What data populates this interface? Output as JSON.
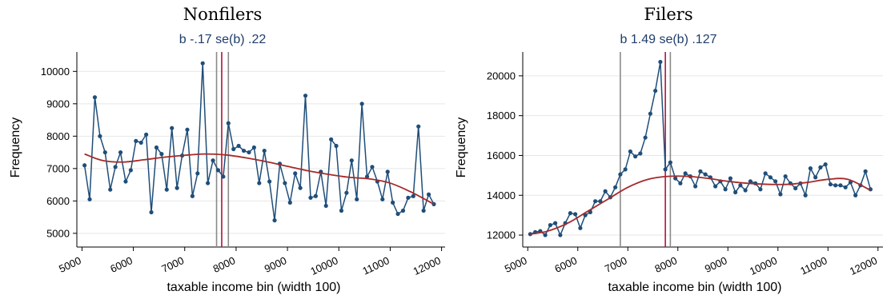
{
  "colors": {
    "series": "#1f4e79",
    "fit": "#a52a2a",
    "vline_red": "#b0143c",
    "vline_gray": "#8a8a8a",
    "grid": "#e6e6e6"
  },
  "chart_data": [
    {
      "type": "line",
      "title": "Nonfilers",
      "subtitle": "b -.17 se(b) .22",
      "xlabel": "taxable income bin (width 100)",
      "ylabel": "Frequency",
      "xlim": [
        4900,
        12100
      ],
      "ylim": [
        4700,
        10600
      ],
      "xticks": [
        5000,
        6000,
        7000,
        8000,
        9000,
        10000,
        11000,
        12000
      ],
      "yticks": [
        5000,
        6000,
        7000,
        8000,
        9000,
        10000
      ],
      "grid": true,
      "vlines": [
        {
          "x": 7620,
          "color": "gray"
        },
        {
          "x": 7720,
          "color": "red"
        },
        {
          "x": 7850,
          "color": "gray"
        }
      ],
      "series": [
        {
          "x": [
            5050,
            5150,
            5250,
            5350,
            5450,
            5550,
            5650,
            5750,
            5850,
            5950,
            6050,
            6150,
            6250,
            6350,
            6450,
            6550,
            6650,
            6750,
            6850,
            6950,
            7050,
            7150,
            7250,
            7350,
            7450,
            7550,
            7650,
            7750,
            7850,
            7950,
            8050,
            8150,
            8250,
            8350,
            8450,
            8550,
            8650,
            8750,
            8850,
            8950,
            9050,
            9150,
            9250,
            9350,
            9450,
            9550,
            9650,
            9750,
            9850,
            9950,
            10050,
            10150,
            10250,
            10350,
            10450,
            10550,
            10650,
            10750,
            10850,
            10950,
            11050,
            11150,
            11250,
            11350,
            11450,
            11550,
            11650,
            11750,
            11850
          ],
          "values": [
            7100,
            6050,
            9200,
            8000,
            7500,
            6350,
            7050,
            7500,
            6600,
            6950,
            7850,
            7800,
            8050,
            5650,
            7650,
            7450,
            6350,
            8250,
            6400,
            7400,
            8200,
            6150,
            6850,
            10250,
            6550,
            7250,
            6950,
            6750,
            8400,
            7600,
            7700,
            7550,
            7500,
            7650,
            6550,
            7550,
            6600,
            5400,
            7150,
            6550,
            5950,
            6850,
            6400,
            9250,
            6100,
            6150,
            6900,
            5850,
            7900,
            7700,
            5700,
            6250,
            7250,
            6050,
            9000,
            6750,
            7050,
            6600,
            6050,
            6900,
            5950,
            5600,
            5700,
            6100,
            6150,
            8300,
            5700,
            6200,
            5900
          ]
        }
      ],
      "fit": {
        "x": [
          5050,
          5400,
          5800,
          6200,
          6600,
          7000,
          7400,
          7800,
          8200,
          8600,
          9000,
          9400,
          9800,
          10200,
          10600,
          11000,
          11400,
          11850
        ],
        "values": [
          7450,
          7250,
          7200,
          7270,
          7350,
          7410,
          7450,
          7420,
          7330,
          7210,
          7070,
          6930,
          6820,
          6730,
          6680,
          6550,
          6280,
          5900
        ]
      }
    },
    {
      "type": "line",
      "title": "Filers",
      "subtitle": "b 1.49 se(b) .127",
      "xlabel": "taxable income bin (width 100)",
      "ylabel": "Frequency",
      "xlim": [
        4900,
        12100
      ],
      "ylim": [
        11600,
        21200
      ],
      "xticks": [
        5000,
        6000,
        7000,
        8000,
        9000,
        10000,
        11000,
        12000
      ],
      "yticks": [
        12000,
        14000,
        16000,
        18000,
        20000
      ],
      "grid": true,
      "vlines": [
        {
          "x": 6850,
          "color": "gray"
        },
        {
          "x": 7750,
          "color": "red"
        },
        {
          "x": 7850,
          "color": "gray"
        }
      ],
      "series": [
        {
          "x": [
            5050,
            5150,
            5250,
            5350,
            5450,
            5550,
            5650,
            5750,
            5850,
            5950,
            6050,
            6150,
            6250,
            6350,
            6450,
            6550,
            6650,
            6750,
            6850,
            6950,
            7050,
            7150,
            7250,
            7350,
            7450,
            7550,
            7650,
            7750,
            7850,
            7950,
            8050,
            8150,
            8250,
            8350,
            8450,
            8550,
            8650,
            8750,
            8850,
            8950,
            9050,
            9150,
            9250,
            9350,
            9450,
            9550,
            9650,
            9750,
            9850,
            9950,
            10050,
            10150,
            10250,
            10350,
            10450,
            10550,
            10650,
            10750,
            10850,
            10950,
            11050,
            11150,
            11250,
            11350,
            11450,
            11550,
            11650,
            11750,
            11850
          ],
          "values": [
            12050,
            12150,
            12200,
            12000,
            12500,
            12600,
            12000,
            12600,
            13100,
            13050,
            12350,
            13000,
            13150,
            13700,
            13700,
            14200,
            13900,
            14400,
            15050,
            15300,
            16200,
            15950,
            16100,
            16900,
            18100,
            19250,
            20700,
            15300,
            15650,
            14850,
            14600,
            15100,
            14950,
            14450,
            15200,
            15050,
            14900,
            14450,
            14700,
            14300,
            14850,
            14150,
            14500,
            14250,
            14700,
            14600,
            14300,
            15100,
            14900,
            14700,
            14050,
            14950,
            14600,
            14350,
            14600,
            14000,
            15350,
            14900,
            15400,
            15550,
            14550,
            14500,
            14500,
            14400,
            14650,
            14000,
            14500,
            15200,
            14300
          ]
        }
      ],
      "fit": {
        "x": [
          5050,
          5400,
          5800,
          6200,
          6600,
          7000,
          7400,
          7800,
          8200,
          8600,
          9000,
          9400,
          9800,
          10200,
          10600,
          11000,
          11400,
          11850
        ],
        "values": [
          12050,
          12200,
          12600,
          13200,
          13800,
          14400,
          14800,
          14950,
          14950,
          14850,
          14700,
          14600,
          14550,
          14550,
          14650,
          14800,
          14800,
          14250
        ]
      }
    }
  ]
}
